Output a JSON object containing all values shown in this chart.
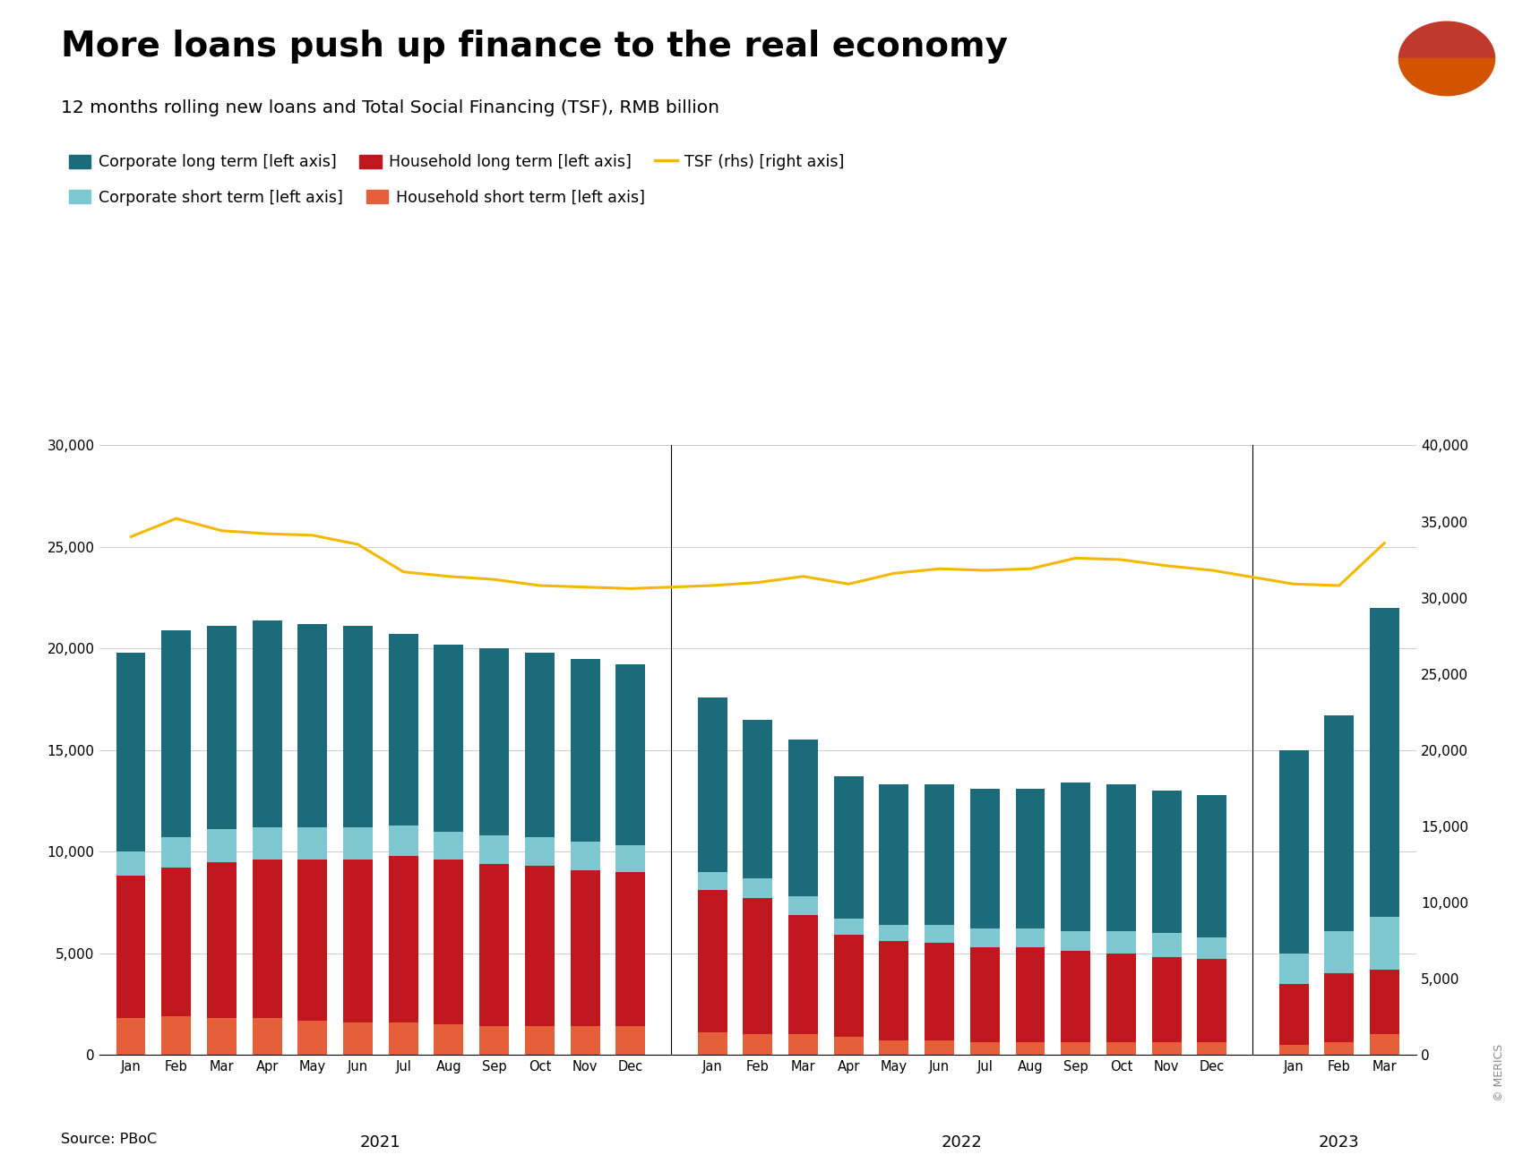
{
  "title": "More loans push up finance to the real economy",
  "subtitle": "12 months rolling new loans and Total Social Financing (TSF), RMB billion",
  "source": "Source: PBoC",
  "watermark": "© MERICS",
  "colors": {
    "corp_long": "#1b6b7b",
    "corp_short": "#7ec8d2",
    "hh_long": "#c0181e",
    "hh_short": "#e5603a",
    "tsf_line": "#f5b800"
  },
  "legend": {
    "corp_long": "Corporate long term [left axis]",
    "corp_short": "Corporate short term [left axis]",
    "hh_long": "Household long term [left axis]",
    "hh_short": "Household short term [left axis]",
    "tsf": "TSF (rhs) [right axis]"
  },
  "ylim_left": [
    0,
    30000
  ],
  "ylim_right": [
    0,
    40000
  ],
  "yticks_left": [
    0,
    5000,
    10000,
    15000,
    20000,
    25000,
    30000
  ],
  "yticks_right": [
    0,
    5000,
    10000,
    15000,
    20000,
    25000,
    30000,
    35000,
    40000
  ],
  "months_2021": [
    "Jan",
    "Feb",
    "Mar",
    "Apr",
    "May",
    "Jun",
    "Jul",
    "Aug",
    "Sep",
    "Oct",
    "Nov",
    "Dec"
  ],
  "months_2022": [
    "Jan",
    "Feb",
    "Mar",
    "Apr",
    "May",
    "Jun",
    "Jul",
    "Aug",
    "Sep",
    "Oct",
    "Nov",
    "Dec"
  ],
  "months_2023": [
    "Jan",
    "Feb",
    "Mar"
  ],
  "hh_short": [
    1800,
    1900,
    1800,
    1800,
    1700,
    1600,
    1600,
    1500,
    1400,
    1400,
    1400,
    1400,
    1100,
    1000,
    1000,
    900,
    700,
    700,
    600,
    600,
    600,
    600,
    600,
    600,
    500,
    600,
    1000
  ],
  "hh_long": [
    7000,
    7300,
    7700,
    7800,
    7900,
    8000,
    8200,
    8100,
    8000,
    7900,
    7700,
    7600,
    7000,
    6700,
    5900,
    5000,
    4900,
    4800,
    4700,
    4700,
    4500,
    4400,
    4200,
    4100,
    3000,
    3400,
    3200
  ],
  "corp_short": [
    1200,
    1500,
    1600,
    1600,
    1600,
    1600,
    1500,
    1400,
    1400,
    1400,
    1400,
    1300,
    900,
    1000,
    900,
    800,
    800,
    900,
    900,
    900,
    1000,
    1100,
    1200,
    1100,
    1500,
    2100,
    2600
  ],
  "corp_long": [
    9800,
    10200,
    10000,
    10200,
    10000,
    9900,
    9400,
    9200,
    9200,
    9100,
    9000,
    8900,
    8600,
    7800,
    7700,
    7000,
    6900,
    6900,
    6900,
    6900,
    7300,
    7200,
    7000,
    7000,
    10000,
    10600,
    15200
  ],
  "tsf": [
    34000,
    35200,
    34400,
    34200,
    34100,
    33500,
    31700,
    31400,
    31200,
    30800,
    30700,
    30600,
    30800,
    31000,
    31400,
    30900,
    31600,
    31900,
    31800,
    31900,
    32600,
    32500,
    32100,
    31800,
    30900,
    30800,
    33600
  ],
  "background_color": "#ffffff"
}
